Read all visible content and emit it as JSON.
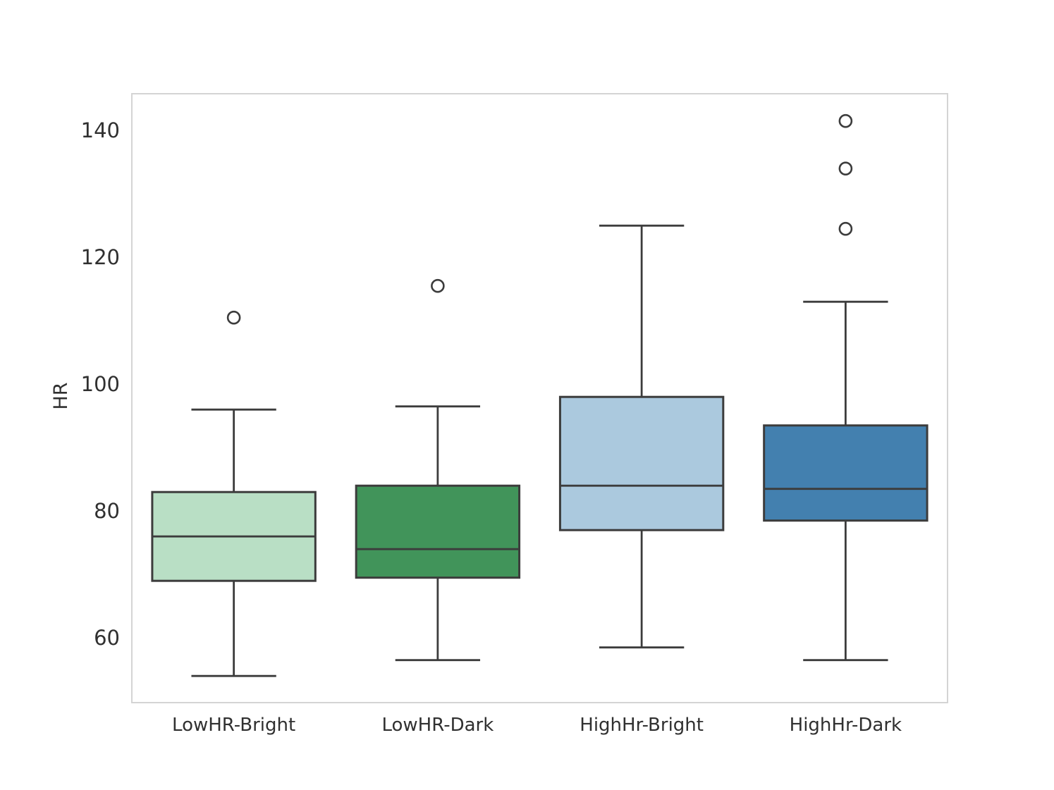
{
  "chart_data": {
    "type": "boxplot",
    "title": "",
    "xlabel": "",
    "ylabel": "HR",
    "categories": [
      "LowHR-Bright",
      "LowHR-Dark",
      "HighHr-Bright",
      "HighHr-Dark"
    ],
    "yticks": [
      60,
      80,
      100,
      120,
      140
    ],
    "ylim": [
      49.8,
      145.8
    ],
    "grid": false,
    "legend": null,
    "series": [
      {
        "category": "LowHR-Bright",
        "whisker_low": 54,
        "q1": 69,
        "median": 76,
        "q3": 83,
        "whisker_high": 96,
        "outliers": [
          110.5
        ],
        "fill": "#b9dfc5"
      },
      {
        "category": "LowHR-Dark",
        "whisker_low": 56.5,
        "q1": 69.5,
        "median": 74,
        "q3": 84,
        "whisker_high": 96.5,
        "outliers": [
          115.5
        ],
        "fill": "#41945a"
      },
      {
        "category": "HighHr-Bright",
        "whisker_low": 58.5,
        "q1": 77,
        "median": 84,
        "q3": 98,
        "whisker_high": 125,
        "outliers": [],
        "fill": "#abc9de"
      },
      {
        "category": "HighHr-Dark",
        "whisker_low": 56.5,
        "q1": 78.5,
        "median": 83.5,
        "q3": 93.5,
        "whisker_high": 113,
        "outliers": [
          141.5,
          134,
          124.5
        ],
        "fill": "#4380af"
      }
    ],
    "colors": {
      "line": "#3c3c3c",
      "frame": "#d4d4d4",
      "text": "#303030",
      "background": "#ffffff"
    }
  }
}
